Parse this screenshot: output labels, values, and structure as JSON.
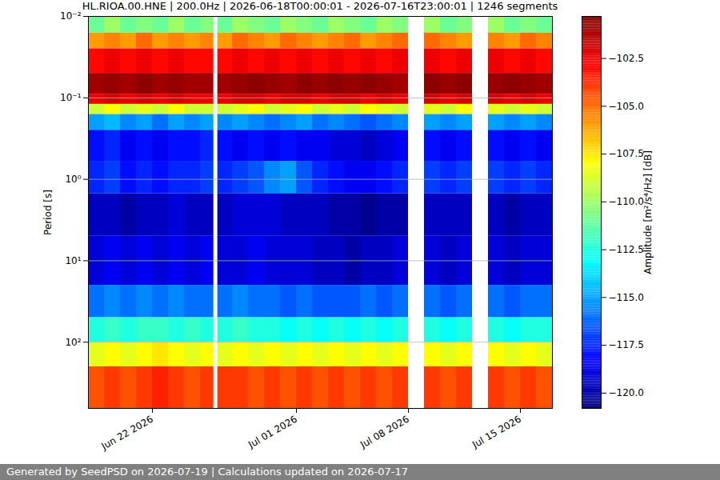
{
  "chart_data": {
    "type": "heatmap",
    "title": "HL.RIOA.00.HNE | 200.0Hz | 2026-06-18T00:00:01 - 2026-07-16T23:00:01 | 1246 segments",
    "caption": "Generated by SeedPSD on 2026-07-19 | Calculations updated on 2026-07-17",
    "ylabel": "Period [s]",
    "colorbar_label": "Amplitude [m²/s⁴/Hz] [dB]",
    "log": "y",
    "grid": true,
    "xlim": [
      "2026-06-18T00:00",
      "2026-07-17T00:00"
    ],
    "xticks": [
      {
        "value": "2026-06-22T00:00",
        "label": "Jun 22 2026"
      },
      {
        "value": "2026-07-01T00:00",
        "label": "Jul 01 2026"
      },
      {
        "value": "2026-07-08T00:00",
        "label": "Jul 08 2026"
      },
      {
        "value": "2026-07-15T00:00",
        "label": "Jul 15 2026"
      }
    ],
    "ylim": [
      0.01,
      650
    ],
    "yticks": [
      {
        "value": 0.01,
        "label": "10⁻²"
      },
      {
        "value": 0.1,
        "label": "10⁻¹"
      },
      {
        "value": 1,
        "label": "10⁰"
      },
      {
        "value": 10,
        "label": "10¹"
      },
      {
        "value": 100,
        "label": "10²"
      }
    ],
    "clim": [
      -120.8,
      -100.3
    ],
    "cticks": [
      {
        "value": -102.5,
        "label": "−102.5"
      },
      {
        "value": -105,
        "label": "−105.0"
      },
      {
        "value": -107.5,
        "label": "−107.5"
      },
      {
        "value": -110,
        "label": "−110.0"
      },
      {
        "value": -112.5,
        "label": "−112.5"
      },
      {
        "value": -115,
        "label": "−115.0"
      },
      {
        "value": -117.5,
        "label": "−117.5"
      },
      {
        "value": -120,
        "label": "−120.0"
      }
    ],
    "x_bins": [
      "2026-06-18T00:00",
      "2026-06-19T00:00",
      "2026-06-20T00:00",
      "2026-06-21T00:00",
      "2026-06-22T00:00",
      "2026-06-23T00:00",
      "2026-06-24T00:00",
      "2026-06-25T00:00",
      "2026-06-25T20:00",
      "2026-06-26T02:00",
      "2026-06-27T00:00",
      "2026-06-28T00:00",
      "2026-06-29T00:00",
      "2026-06-30T00:00",
      "2026-07-01T00:00",
      "2026-07-02T00:00",
      "2026-07-03T00:00",
      "2026-07-04T00:00",
      "2026-07-05T00:00",
      "2026-07-06T00:00",
      "2026-07-07T00:00",
      "2026-07-08T00:00",
      "2026-07-09T00:00",
      "2026-07-10T00:00",
      "2026-07-11T00:00",
      "2026-07-12T00:00",
      "2026-07-13T00:00",
      "2026-07-14T00:00",
      "2026-07-15T00:00",
      "2026-07-16T00:00",
      "2026-07-17T00:00"
    ],
    "y_bins": [
      0.01,
      0.016,
      0.025,
      0.05,
      0.09,
      0.12,
      0.16,
      0.25,
      0.6,
      1.5,
      5,
      20,
      50,
      100,
      200,
      650
    ],
    "cells": [
      [
        -111,
        -110,
        -111,
        -110.5,
        -111,
        -110,
        -111,
        -110.5,
        null,
        -111,
        -110,
        -110.5,
        -111,
        -110,
        -110.5,
        -111,
        -110,
        -110.5,
        -111,
        -110,
        -110.5,
        null,
        -110,
        -111,
        -110.5,
        null,
        -110,
        -111,
        -110.5,
        -111
      ],
      [
        -106,
        -105.5,
        -106,
        -105,
        -106,
        -105.5,
        -106,
        -105.5,
        null,
        -106,
        -105,
        -105.5,
        -106,
        -105,
        -105.5,
        -106,
        -105.5,
        -105,
        -106,
        -105.5,
        -105,
        null,
        -105,
        -105.5,
        -106,
        null,
        -105.5,
        -106,
        -105,
        -105.5
      ],
      [
        -103,
        -102.5,
        -103,
        -102.5,
        -103,
        -102.5,
        -103,
        -103,
        null,
        -103,
        -102.5,
        -103,
        -102.5,
        -103,
        -102.5,
        -103,
        -102.5,
        -103,
        -102.5,
        -103,
        -102.5,
        null,
        -102.5,
        -103,
        -102.5,
        null,
        -102.5,
        -103,
        -102.5,
        -103
      ],
      [
        -101,
        -100.8,
        -101,
        -100.6,
        -101,
        -100.8,
        -101,
        -101,
        null,
        -101,
        -100.8,
        -100.6,
        -100.8,
        -101,
        -100.6,
        -100.8,
        -100.6,
        -100.8,
        -100.6,
        -100.8,
        -101,
        null,
        -100.6,
        -100.8,
        -100.6,
        null,
        -100.8,
        -100.6,
        -100.8,
        -101
      ],
      [
        -102.5,
        -102,
        -102.5,
        -102,
        -102.5,
        -102,
        -102.5,
        -102.5,
        null,
        -102.5,
        -102,
        -102,
        -102.5,
        -102,
        -102,
        -102.5,
        -102,
        -102,
        -102.5,
        -102,
        -102.5,
        null,
        -102,
        -102.5,
        -102,
        null,
        -102,
        -102.5,
        -102,
        -102.5
      ],
      [
        -109,
        -108,
        -109,
        -108.5,
        -109,
        -108,
        -109,
        -109,
        null,
        -109,
        -108.5,
        -108,
        -109,
        -108.5,
        -108,
        -109,
        -108.5,
        -109,
        -108,
        -108.5,
        -109,
        null,
        -108.5,
        -109,
        -108,
        null,
        -108.5,
        -109,
        -108.5,
        -109
      ],
      [
        -115,
        -114.5,
        -115.5,
        -115,
        -116,
        -115,
        -115.5,
        -115,
        null,
        -115.5,
        -115,
        -115.5,
        -116,
        -115.5,
        -115,
        -116,
        -115.5,
        -116,
        -116.5,
        -116,
        -115.5,
        null,
        -115,
        -115.5,
        -115,
        null,
        -115,
        -115.5,
        -115,
        -115.5
      ],
      [
        -118,
        -117.5,
        -118.5,
        -118,
        -118.5,
        -118,
        -118,
        -117.5,
        null,
        -118,
        -118.5,
        -118,
        -118.5,
        -118,
        -118.5,
        -118.5,
        -119,
        -119,
        -119.5,
        -119,
        -118.5,
        null,
        -118,
        -118.5,
        -118,
        null,
        -118,
        -118.5,
        -118,
        -118.5
      ],
      [
        -117.5,
        -117,
        -118,
        -117.5,
        -118,
        -117.5,
        -117.5,
        -117,
        null,
        -117.5,
        -117,
        -116.5,
        -115.5,
        -115,
        -116.5,
        -117.5,
        -118,
        -118.5,
        -118.5,
        -118,
        -117.5,
        null,
        -117,
        -117.5,
        -117,
        null,
        -117,
        -117.5,
        -117,
        -117.5
      ],
      [
        -119.5,
        -119.5,
        -120,
        -119.5,
        -119.5,
        -119,
        -119.5,
        -119.5,
        null,
        -119.5,
        -119,
        -119,
        -119,
        -119.5,
        -119.5,
        -119.5,
        -120,
        -120,
        -120.5,
        -120,
        -120,
        null,
        -119.5,
        -119.5,
        -119.5,
        null,
        -119.5,
        -120,
        -119.5,
        -119.5
      ],
      [
        -119,
        -118.5,
        -119,
        -118.5,
        -119,
        -118.5,
        -119,
        -118.5,
        null,
        -119,
        -119,
        -118.5,
        -119,
        -119,
        -119,
        -119.5,
        -119.5,
        -120,
        -119.5,
        -119.5,
        -119,
        null,
        -119,
        -119.5,
        -119,
        null,
        -119,
        -119.5,
        -119,
        -119
      ],
      [
        -116,
        -115.5,
        -116,
        -115.5,
        -116,
        -115.5,
        -116,
        -116,
        null,
        -116,
        -115.5,
        -116,
        -116,
        -116.5,
        -116,
        -116.5,
        -116.5,
        -116.5,
        -116,
        -116.5,
        -116,
        null,
        -116,
        -116.5,
        -116,
        null,
        -116,
        -116.5,
        -116,
        -116
      ],
      [
        -112.5,
        -112,
        -112.5,
        -112,
        -112,
        -112.5,
        -112,
        -112.5,
        null,
        -112.5,
        -112,
        -112.5,
        -112.5,
        -113,
        -112.5,
        -113,
        -112.5,
        -113,
        -112.5,
        -113,
        -112.5,
        null,
        -112.5,
        -113,
        -112.5,
        null,
        -112.5,
        -113,
        -112.5,
        -112.5
      ],
      [
        -108.5,
        -108,
        -108.5,
        -108,
        -107.5,
        -108,
        -108.5,
        -108,
        null,
        -108.5,
        -108,
        -108.5,
        -108,
        -108.5,
        -108,
        -108.5,
        -108,
        -108.5,
        -108,
        -108.5,
        -108,
        null,
        -108,
        -108.5,
        -108,
        null,
        -108,
        -108.5,
        -108,
        -108.5
      ],
      [
        -104.5,
        -104,
        -104.5,
        -104,
        -103.5,
        -104,
        -104.5,
        -104,
        null,
        -104,
        -104,
        -104.5,
        -104,
        -104.5,
        -104,
        -104.5,
        -104,
        -104.5,
        -104,
        -104.5,
        -104,
        null,
        -104,
        -104.5,
        -104,
        null,
        -104,
        -104.5,
        -104,
        -104.5
      ]
    ]
  }
}
